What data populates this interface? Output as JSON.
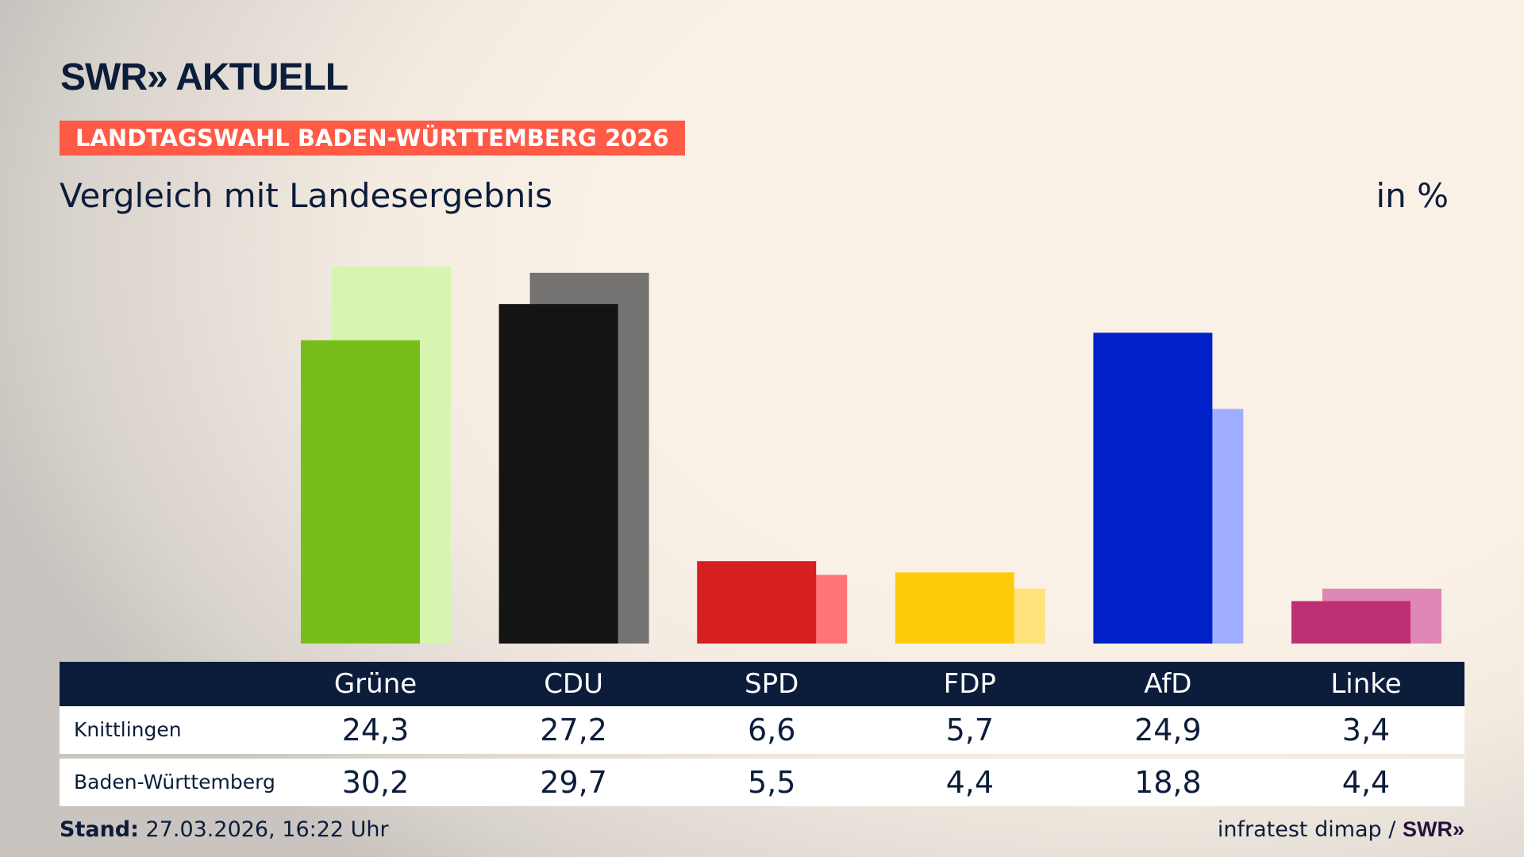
{
  "header": {
    "logo_text": "SWR» AKTUELL",
    "banner": "LANDTAGSWAHL BADEN-WÜRTTEMBERG 2026",
    "subtitle": "Vergleich mit Landesergebnis",
    "unit": "in %"
  },
  "chart_data": {
    "type": "bar",
    "title": "Vergleich mit Landesergebnis",
    "ylabel": "in %",
    "categories": [
      "Grüne",
      "CDU",
      "SPD",
      "FDP",
      "AfD",
      "Linke"
    ],
    "series": [
      {
        "name": "Knittlingen",
        "values": [
          24.3,
          27.2,
          6.6,
          5.7,
          24.9,
          3.4
        ],
        "display": [
          "24,3",
          "27,2",
          "6,6",
          "5,7",
          "24,9",
          "3,4"
        ]
      },
      {
        "name": "Baden-Württemberg",
        "values": [
          30.2,
          29.7,
          5.5,
          4.4,
          18.8,
          4.4
        ],
        "display": [
          "30,2",
          "29,7",
          "5,5",
          "4,4",
          "18,8",
          "4,4"
        ]
      }
    ],
    "colors": {
      "primary": [
        "#78be1a",
        "#141414",
        "#d61f1f",
        "#ffcc0a",
        "#0021c8",
        "#be3075"
      ],
      "secondary": [
        "#d6f5ae",
        "#747372",
        "#ff7575",
        "#ffe27a",
        "#a0aeff",
        "#e088b5"
      ]
    },
    "ylim": [
      0,
      30.2
    ],
    "grid": false
  },
  "footer": {
    "stand_label": "Stand:",
    "stand_value": "27.03.2026, 16:22 Uhr",
    "source": "infratest dimap /",
    "source_logo": "SWR»"
  }
}
